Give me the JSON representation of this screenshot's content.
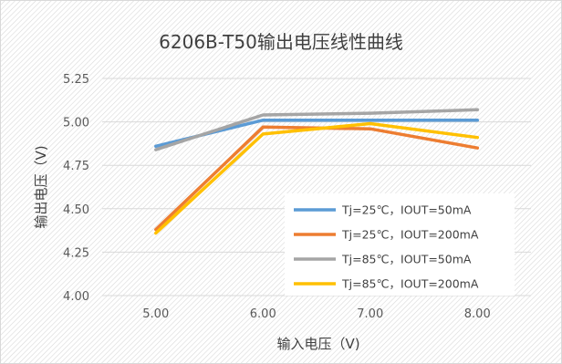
{
  "chart_data": {
    "type": "line",
    "title": "6206B-T50输出电压线性曲线",
    "xlabel": "输入电压（V)",
    "ylabel": "输出电压（V)",
    "x": [
      5.0,
      6.0,
      7.0,
      8.0
    ],
    "x_tick_labels": [
      "5.00",
      "6.00",
      "7.00",
      "8.00"
    ],
    "ylim": [
      4.0,
      5.25
    ],
    "y_ticks": [
      4.0,
      4.25,
      4.5,
      4.75,
      5.0,
      5.25
    ],
    "y_tick_labels": [
      "4.00",
      "4.25",
      "4.50",
      "4.75",
      "5.00",
      "5.25"
    ],
    "grid": true,
    "legend_position": "inside-bottom-right",
    "series": [
      {
        "name": "Tj=25℃，IOUT=50mA",
        "color": "#5B9BD5",
        "values": [
          4.86,
          5.01,
          5.01,
          5.01
        ]
      },
      {
        "name": "Tj=25℃，IOUT=200mA",
        "color": "#ED7D31",
        "values": [
          4.38,
          4.97,
          4.96,
          4.85
        ]
      },
      {
        "name": "Tj=85℃，IOUT=50mA",
        "color": "#A5A5A5",
        "values": [
          4.84,
          5.04,
          5.05,
          5.07
        ]
      },
      {
        "name": "Tj=85℃，IOUT=200mA",
        "color": "#FFC000",
        "values": [
          4.36,
          4.93,
          4.99,
          4.91
        ]
      }
    ]
  }
}
